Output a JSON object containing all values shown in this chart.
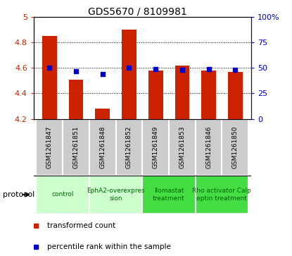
{
  "title": "GDS5670 / 8109981",
  "samples": [
    "GSM1261847",
    "GSM1261851",
    "GSM1261848",
    "GSM1261852",
    "GSM1261849",
    "GSM1261853",
    "GSM1261846",
    "GSM1261850"
  ],
  "bar_values": [
    4.85,
    4.51,
    4.28,
    4.9,
    4.58,
    4.62,
    4.58,
    4.57
  ],
  "bar_bottom": 4.2,
  "dot_percentiles": [
    50,
    47,
    44,
    50,
    49,
    48,
    49,
    48
  ],
  "ylim_left": [
    4.2,
    5.0
  ],
  "ylim_right": [
    0,
    100
  ],
  "yticks_left": [
    4.2,
    4.4,
    4.6,
    4.8,
    5.0
  ],
  "ytick_labels_left": [
    "4.2",
    "4.4",
    "4.6",
    "4.8",
    "5"
  ],
  "yticks_right": [
    0,
    25,
    50,
    75,
    100
  ],
  "ytick_labels_right": [
    "0",
    "25",
    "50",
    "75",
    "100%"
  ],
  "bar_color": "#cc2200",
  "dot_color": "#0000cc",
  "groups": [
    {
      "label": "control",
      "samples": [
        0,
        1
      ],
      "color": "#ccffcc",
      "text_color": "#006600"
    },
    {
      "label": "EphA2-overexpres\nsion",
      "samples": [
        2,
        3
      ],
      "color": "#ccffcc",
      "text_color": "#006600"
    },
    {
      "label": "Ilomastat\ntreatment",
      "samples": [
        4,
        5
      ],
      "color": "#44dd44",
      "text_color": "#006600"
    },
    {
      "label": "Rho activator Calp\neptin treatment",
      "samples": [
        6,
        7
      ],
      "color": "#44dd44",
      "text_color": "#006600"
    }
  ],
  "legend_bar_label": "transformed count",
  "legend_dot_label": "percentile rank within the sample",
  "tick_color_left": "#cc2200",
  "tick_color_right": "#0000cc",
  "sample_bg": "#cccccc",
  "sample_border": "#ffffff"
}
